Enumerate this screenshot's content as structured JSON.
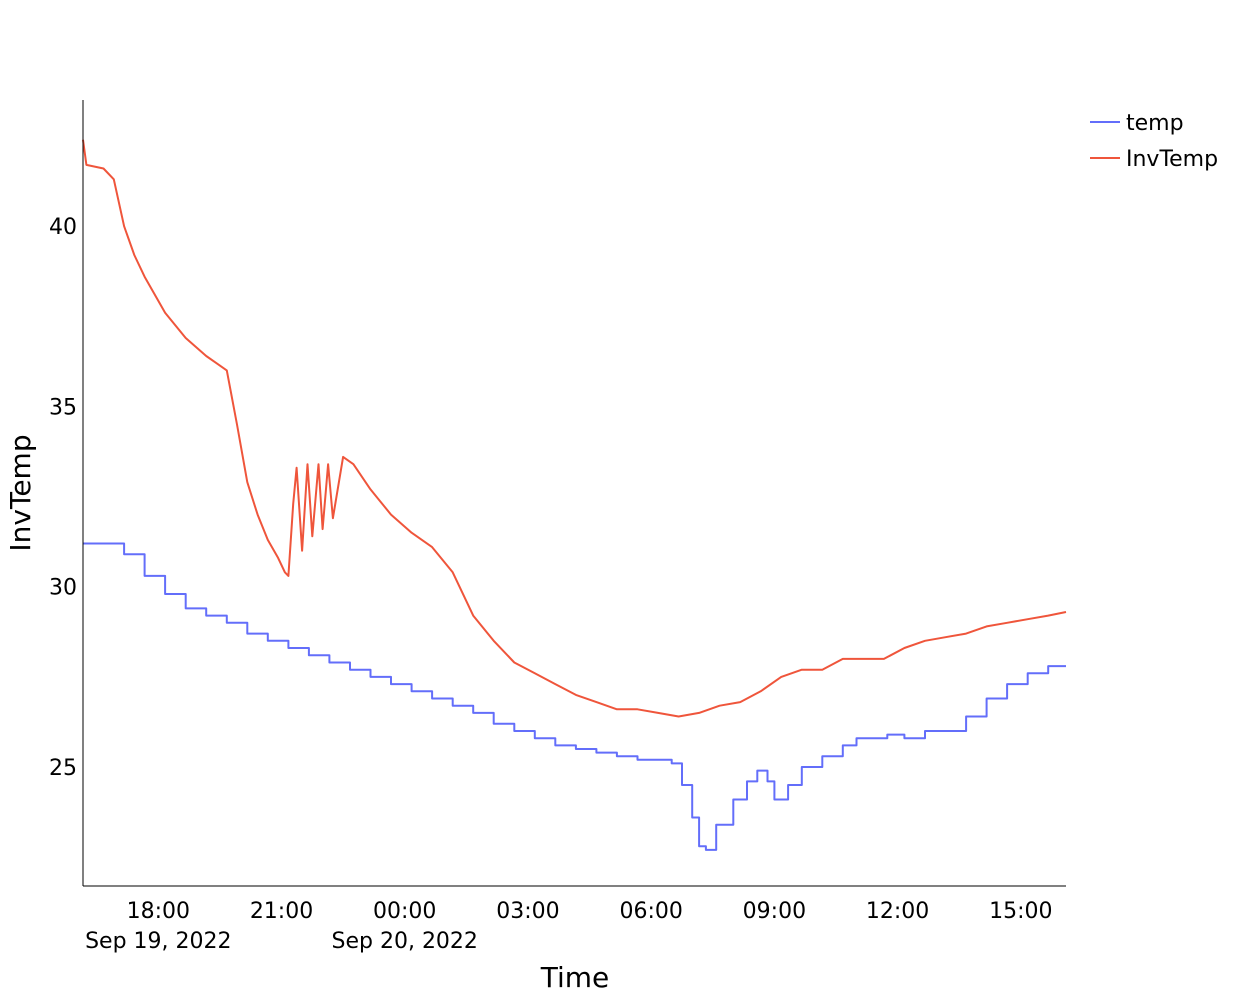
{
  "chart_data": {
    "type": "line",
    "title": "",
    "xlabel": "Time",
    "ylabel": "InvTemp",
    "xlim": [
      "2022-09-19 16:10",
      "2022-09-20 16:06"
    ],
    "ylim": [
      21.7,
      43.5
    ],
    "grid": false,
    "legend_position": "top-right",
    "x_ticks": [
      {
        "t": "2022-09-19 18:00",
        "label": "18:00",
        "sublabel": "Sep 19, 2022"
      },
      {
        "t": "2022-09-19 21:00",
        "label": "21:00",
        "sublabel": ""
      },
      {
        "t": "2022-09-20 00:00",
        "label": "00:00",
        "sublabel": "Sep 20, 2022"
      },
      {
        "t": "2022-09-20 03:00",
        "label": "03:00",
        "sublabel": ""
      },
      {
        "t": "2022-09-20 06:00",
        "label": "06:00",
        "sublabel": ""
      },
      {
        "t": "2022-09-20 09:00",
        "label": "09:00",
        "sublabel": ""
      },
      {
        "t": "2022-09-20 12:00",
        "label": "12:00",
        "sublabel": ""
      },
      {
        "t": "2022-09-20 15:00",
        "label": "15:00",
        "sublabel": ""
      }
    ],
    "y_ticks": [
      {
        "v": 25,
        "label": "25"
      },
      {
        "v": 30,
        "label": "30"
      },
      {
        "v": 35,
        "label": "35"
      },
      {
        "v": 40,
        "label": "40"
      }
    ],
    "series": [
      {
        "name": "temp",
        "color": "#636efa",
        "step": true,
        "points": [
          [
            "2022-09-19 16:10",
            31.2
          ],
          [
            "2022-09-19 16:40",
            31.2
          ],
          [
            "2022-09-19 17:10",
            30.9
          ],
          [
            "2022-09-19 17:40",
            30.3
          ],
          [
            "2022-09-19 18:10",
            29.8
          ],
          [
            "2022-09-19 18:40",
            29.4
          ],
          [
            "2022-09-19 19:10",
            29.2
          ],
          [
            "2022-09-19 19:40",
            29.0
          ],
          [
            "2022-09-19 20:10",
            28.7
          ],
          [
            "2022-09-19 20:40",
            28.5
          ],
          [
            "2022-09-19 21:10",
            28.3
          ],
          [
            "2022-09-19 21:40",
            28.1
          ],
          [
            "2022-09-19 22:10",
            27.9
          ],
          [
            "2022-09-19 22:40",
            27.7
          ],
          [
            "2022-09-19 23:10",
            27.5
          ],
          [
            "2022-09-19 23:40",
            27.3
          ],
          [
            "2022-09-20 00:10",
            27.1
          ],
          [
            "2022-09-20 00:40",
            26.9
          ],
          [
            "2022-09-20 01:10",
            26.7
          ],
          [
            "2022-09-20 01:40",
            26.5
          ],
          [
            "2022-09-20 02:10",
            26.2
          ],
          [
            "2022-09-20 02:40",
            26.0
          ],
          [
            "2022-09-20 03:10",
            25.8
          ],
          [
            "2022-09-20 03:40",
            25.6
          ],
          [
            "2022-09-20 04:10",
            25.5
          ],
          [
            "2022-09-20 04:40",
            25.4
          ],
          [
            "2022-09-20 05:10",
            25.3
          ],
          [
            "2022-09-20 05:40",
            25.2
          ],
          [
            "2022-09-20 06:10",
            25.2
          ],
          [
            "2022-09-20 06:30",
            25.1
          ],
          [
            "2022-09-20 06:45",
            24.5
          ],
          [
            "2022-09-20 07:00",
            23.6
          ],
          [
            "2022-09-20 07:10",
            22.8
          ],
          [
            "2022-09-20 07:20",
            22.7
          ],
          [
            "2022-09-20 07:35",
            23.4
          ],
          [
            "2022-09-20 08:00",
            24.1
          ],
          [
            "2022-09-20 08:20",
            24.6
          ],
          [
            "2022-09-20 08:35",
            24.9
          ],
          [
            "2022-09-20 08:50",
            24.6
          ],
          [
            "2022-09-20 09:00",
            24.1
          ],
          [
            "2022-09-20 09:20",
            24.5
          ],
          [
            "2022-09-20 09:40",
            25.0
          ],
          [
            "2022-09-20 10:10",
            25.3
          ],
          [
            "2022-09-20 10:40",
            25.6
          ],
          [
            "2022-09-20 11:00",
            25.8
          ],
          [
            "2022-09-20 11:40",
            25.8
          ],
          [
            "2022-09-20 11:45",
            25.9
          ],
          [
            "2022-09-20 12:10",
            25.8
          ],
          [
            "2022-09-20 12:40",
            26.0
          ],
          [
            "2022-09-20 13:10",
            26.0
          ],
          [
            "2022-09-20 13:40",
            26.4
          ],
          [
            "2022-09-20 14:10",
            26.9
          ],
          [
            "2022-09-20 14:40",
            27.3
          ],
          [
            "2022-09-20 15:10",
            27.6
          ],
          [
            "2022-09-20 15:40",
            27.8
          ],
          [
            "2022-09-20 16:06",
            27.8
          ]
        ]
      },
      {
        "name": "InvTemp",
        "color": "#ef553b",
        "step": false,
        "points": [
          [
            "2022-09-19 16:10",
            42.4
          ],
          [
            "2022-09-19 16:15",
            41.7
          ],
          [
            "2022-09-19 16:40",
            41.6
          ],
          [
            "2022-09-19 16:55",
            41.3
          ],
          [
            "2022-09-19 17:10",
            40.0
          ],
          [
            "2022-09-19 17:25",
            39.2
          ],
          [
            "2022-09-19 17:40",
            38.6
          ],
          [
            "2022-09-19 18:10",
            37.6
          ],
          [
            "2022-09-19 18:40",
            36.9
          ],
          [
            "2022-09-19 19:10",
            36.4
          ],
          [
            "2022-09-19 19:25",
            36.2
          ],
          [
            "2022-09-19 19:40",
            36.0
          ],
          [
            "2022-09-19 19:55",
            34.5
          ],
          [
            "2022-09-19 20:10",
            32.9
          ],
          [
            "2022-09-19 20:25",
            32.0
          ],
          [
            "2022-09-19 20:40",
            31.3
          ],
          [
            "2022-09-19 20:55",
            30.8
          ],
          [
            "2022-09-19 21:05",
            30.4
          ],
          [
            "2022-09-19 21:10",
            30.3
          ],
          [
            "2022-09-19 21:17",
            32.3
          ],
          [
            "2022-09-19 21:22",
            33.3
          ],
          [
            "2022-09-19 21:30",
            31.0
          ],
          [
            "2022-09-19 21:38",
            33.4
          ],
          [
            "2022-09-19 21:45",
            31.4
          ],
          [
            "2022-09-19 21:54",
            33.4
          ],
          [
            "2022-09-19 22:00",
            31.6
          ],
          [
            "2022-09-19 22:08",
            33.4
          ],
          [
            "2022-09-19 22:15",
            31.9
          ],
          [
            "2022-09-19 22:30",
            33.6
          ],
          [
            "2022-09-19 22:45",
            33.4
          ],
          [
            "2022-09-19 23:10",
            32.7
          ],
          [
            "2022-09-19 23:40",
            32.0
          ],
          [
            "2022-09-20 00:10",
            31.5
          ],
          [
            "2022-09-20 00:40",
            31.1
          ],
          [
            "2022-09-20 01:10",
            30.4
          ],
          [
            "2022-09-20 01:40",
            29.2
          ],
          [
            "2022-09-20 02:10",
            28.5
          ],
          [
            "2022-09-20 02:40",
            27.9
          ],
          [
            "2022-09-20 03:10",
            27.6
          ],
          [
            "2022-09-20 03:40",
            27.3
          ],
          [
            "2022-09-20 04:10",
            27.0
          ],
          [
            "2022-09-20 04:40",
            26.8
          ],
          [
            "2022-09-20 05:10",
            26.6
          ],
          [
            "2022-09-20 05:40",
            26.6
          ],
          [
            "2022-09-20 06:10",
            26.5
          ],
          [
            "2022-09-20 06:40",
            26.4
          ],
          [
            "2022-09-20 07:10",
            26.5
          ],
          [
            "2022-09-20 07:40",
            26.7
          ],
          [
            "2022-09-20 08:10",
            26.8
          ],
          [
            "2022-09-20 08:40",
            27.1
          ],
          [
            "2022-09-20 09:10",
            27.5
          ],
          [
            "2022-09-20 09:40",
            27.7
          ],
          [
            "2022-09-20 10:10",
            27.7
          ],
          [
            "2022-09-20 10:40",
            28.0
          ],
          [
            "2022-09-20 11:40",
            28.0
          ],
          [
            "2022-09-20 12:10",
            28.3
          ],
          [
            "2022-09-20 12:40",
            28.5
          ],
          [
            "2022-09-20 13:10",
            28.6
          ],
          [
            "2022-09-20 13:40",
            28.7
          ],
          [
            "2022-09-20 14:10",
            28.9
          ],
          [
            "2022-09-20 14:40",
            29.0
          ],
          [
            "2022-09-20 15:10",
            29.1
          ],
          [
            "2022-09-20 15:40",
            29.2
          ],
          [
            "2022-09-20 16:06",
            29.3
          ]
        ]
      }
    ]
  }
}
